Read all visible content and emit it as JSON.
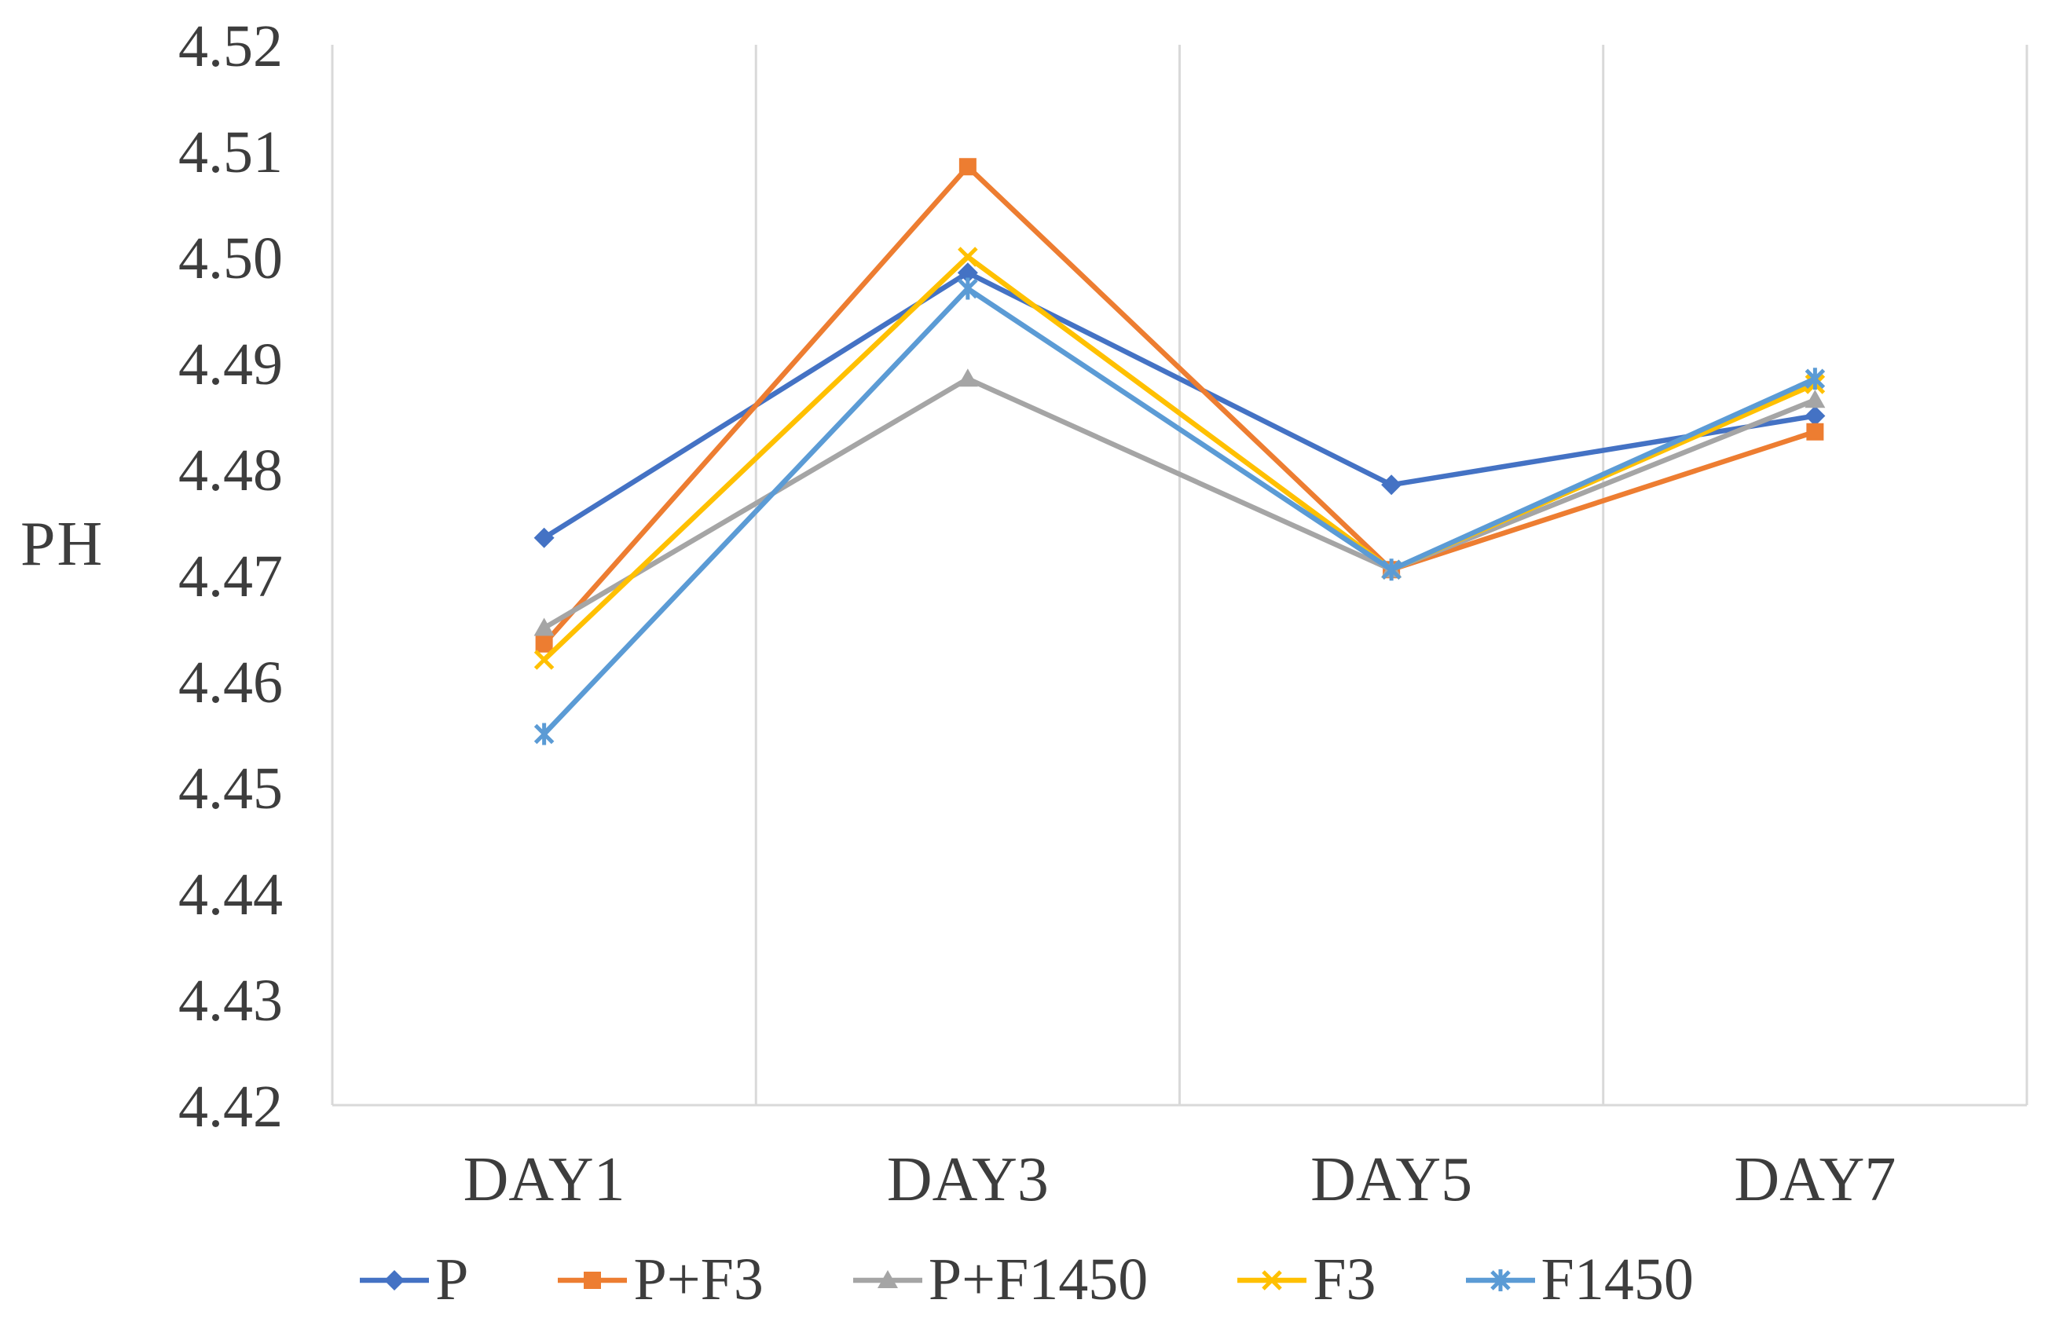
{
  "chart_data": {
    "type": "line",
    "title": "",
    "xlabel": "",
    "ylabel": "PH",
    "categories": [
      "DAY1",
      "DAY3",
      "DAY5",
      "DAY7"
    ],
    "series": [
      {
        "name": "P",
        "color": "#4472C4",
        "marker": "diamond",
        "values": [
          4.4735,
          4.4985,
          4.4785,
          4.485
        ]
      },
      {
        "name": "P+F3",
        "color": "#ED7D31",
        "marker": "square",
        "values": [
          4.4635,
          4.5085,
          4.4705,
          4.4835
        ]
      },
      {
        "name": "P+F1450",
        "color": "#A5A5A5",
        "marker": "triangle",
        "values": [
          4.465,
          4.4885,
          4.4705,
          4.4865
        ]
      },
      {
        "name": "F3",
        "color": "#FFC000",
        "marker": "x",
        "values": [
          4.462,
          4.5,
          4.4705,
          4.488
        ]
      },
      {
        "name": "F1450",
        "color": "#5B9BD5",
        "marker": "asterisk",
        "values": [
          4.455,
          4.497,
          4.4705,
          4.4885
        ]
      }
    ],
    "y_axis": {
      "min": 4.42,
      "max": 4.52,
      "step": 0.01,
      "tick_labels": [
        "4.52",
        "4.51",
        "4.50",
        "4.49",
        "4.48",
        "4.47",
        "4.46",
        "4.45",
        "4.44",
        "4.43",
        "4.42"
      ]
    },
    "grid": {
      "vertical": true,
      "horizontal": false
    },
    "legend_position": "bottom"
  },
  "colors": {
    "text": "#3d3d3d",
    "grid": "#d9d9d9",
    "axis": "#d9d9d9",
    "background": "#ffffff"
  }
}
